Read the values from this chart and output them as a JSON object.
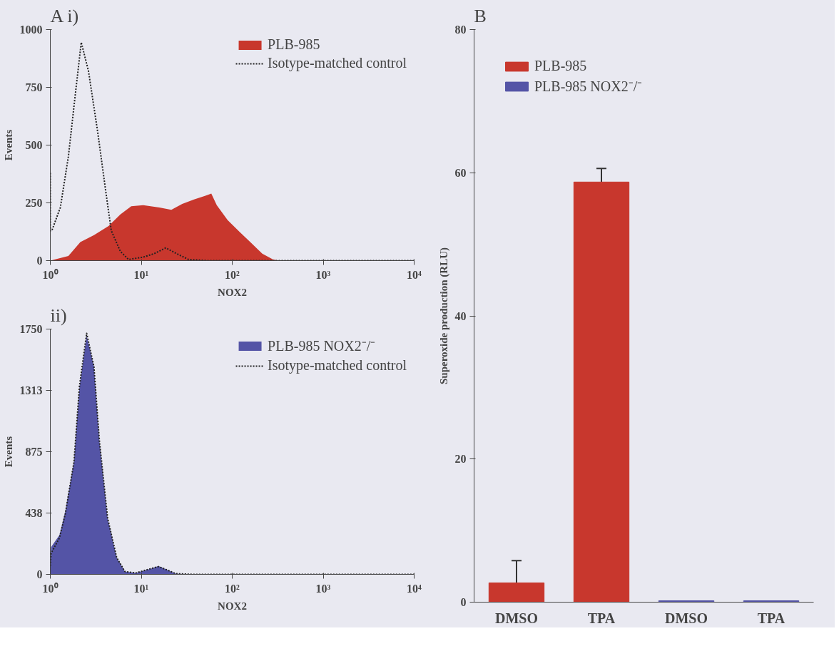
{
  "chart_data": [
    {
      "type": "area",
      "title": "A i)",
      "xlabel": "NOX2",
      "ylabel": "Events",
      "log": "x",
      "xlim": [
        1,
        10000
      ],
      "ylim": [
        0,
        1000
      ],
      "xticks": [
        {
          "value": 1,
          "label": "10⁰"
        },
        {
          "value": 10,
          "label": "10¹"
        },
        {
          "value": 100,
          "label": "10²"
        },
        {
          "value": 1000,
          "label": "10³"
        },
        {
          "value": 10000,
          "label": "10⁴"
        }
      ],
      "yticks": [
        0,
        250,
        500,
        750,
        1000
      ],
      "legend": "top right",
      "series": [
        {
          "name": "PLB-985",
          "type": "area",
          "color": "#c8372d",
          "x": [
            1.0,
            1.58,
            2.14,
            3.02,
            4.37,
            5.89,
            7.76,
            10.5,
            15.8,
            21.4,
            28.2,
            38.0,
            50.1,
            58.9,
            67.6,
            89.1,
            120,
            158,
            214,
            282,
            331
          ],
          "values": [
            0,
            20,
            80,
            110,
            150,
            200,
            235,
            240,
            230,
            220,
            245,
            265,
            280,
            290,
            240,
            175,
            125,
            80,
            30,
            5,
            0
          ]
        },
        {
          "name": "Isotype-matched control",
          "type": "line",
          "color": "#222222",
          "line_style": "dotted",
          "x": [
            1.0,
            1.0,
            1.04,
            1.29,
            1.58,
            1.86,
            2.19,
            2.63,
            3.31,
            4.07,
            4.68,
            5.89,
            7.24,
            10.5,
            13.8,
            18.6,
            24.5,
            33.1,
            53.7,
            10000
          ],
          "values": [
            380,
            130,
            130,
            230,
            450,
            700,
            945,
            820,
            560,
            300,
            130,
            40,
            5,
            15,
            30,
            55,
            30,
            5,
            0,
            0
          ]
        }
      ]
    },
    {
      "type": "area",
      "title": "ii)",
      "xlabel": "NOX2",
      "ylabel": "Events",
      "log": "x",
      "xlim": [
        1,
        10000
      ],
      "ylim": [
        0,
        1750
      ],
      "xticks": [
        {
          "value": 1,
          "label": "10⁰"
        },
        {
          "value": 10,
          "label": "10¹"
        },
        {
          "value": 100,
          "label": "10²"
        },
        {
          "value": 1000,
          "label": "10³"
        },
        {
          "value": 10000,
          "label": "10⁴"
        }
      ],
      "yticks": [
        0,
        438,
        875,
        1313,
        1750
      ],
      "legend": "top right",
      "series": [
        {
          "name": "PLB-985 NOX2⁻/⁻",
          "type": "area",
          "color": "#5454a6",
          "x": [
            1.0,
            1.02,
            1.26,
            1.46,
            1.82,
            2.09,
            2.51,
            3.02,
            3.47,
            4.27,
            5.37,
            6.61,
            8.71,
            12.6,
            15.5,
            19.5,
            24.0,
            37.2
          ],
          "values": [
            0,
            195,
            280,
            448,
            808,
            1336,
            1706,
            1484,
            950,
            400,
            120,
            20,
            10,
            40,
            60,
            30,
            5,
            0
          ]
        },
        {
          "name": "Isotype-matched control",
          "type": "line",
          "color": "#222222",
          "line_style": "dotted",
          "x": [
            1.0,
            1.02,
            1.26,
            1.46,
            1.82,
            2.09,
            2.51,
            3.02,
            3.47,
            4.27,
            5.37,
            6.61,
            8.71,
            12.6,
            15.5,
            19.5,
            24.0,
            37.2,
            10000
          ],
          "values": [
            60,
            150,
            260,
            430,
            800,
            1340,
            1720,
            1480,
            950,
            400,
            120,
            20,
            10,
            40,
            55,
            30,
            5,
            0,
            0
          ]
        }
      ]
    },
    {
      "type": "bar",
      "title": "B",
      "ylabel": "Superoxide production (RLU)",
      "categories": [
        "DMSO",
        "TPA",
        "DMSO",
        "TPA"
      ],
      "ylim": [
        0,
        80
      ],
      "yticks": [
        0,
        20,
        40,
        60,
        80
      ],
      "legend": "top left",
      "series": [
        {
          "name": "PLB-985",
          "color": "#c8372d",
          "values": [
            2.7,
            58.7,
            null,
            null
          ],
          "errors": [
            [
              2.7,
              5.8
            ],
            [
              58.7,
              60.6
            ],
            null,
            null
          ]
        },
        {
          "name": "PLB-985 NOX2⁻/⁻",
          "color": "#5454a6",
          "values": [
            null,
            null,
            0.2,
            0.2
          ]
        }
      ]
    }
  ]
}
